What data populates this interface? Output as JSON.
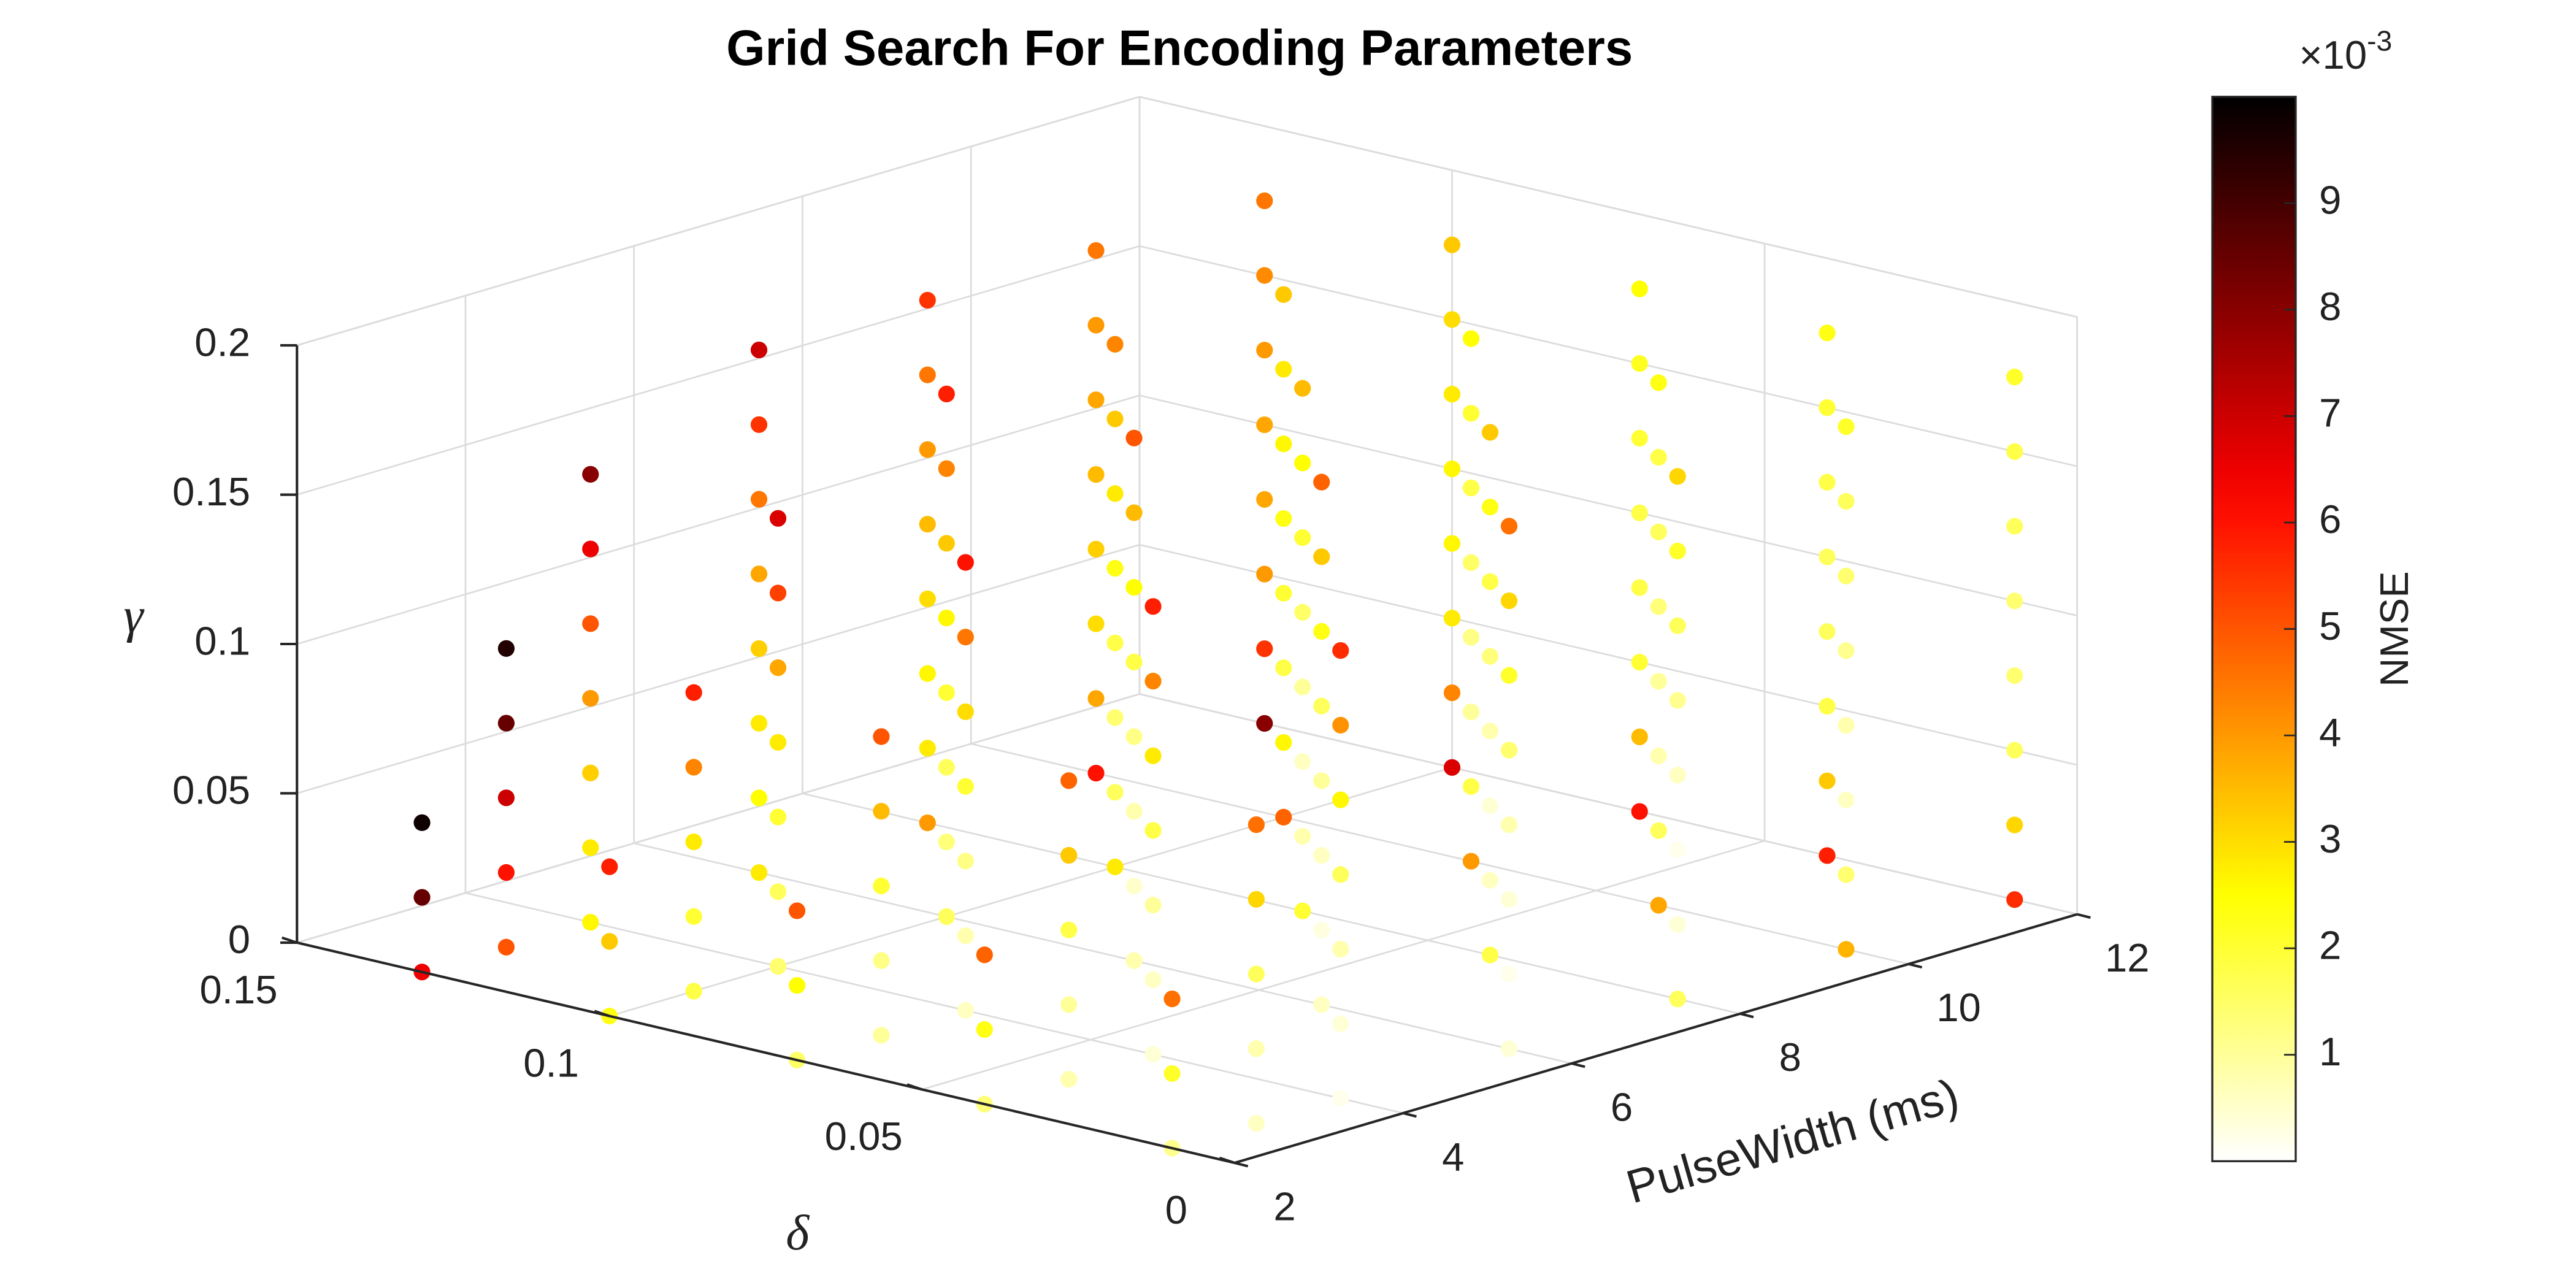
{
  "chart_data": {
    "type": "scatter3d",
    "title": "Grid Search For Encoding Parameters",
    "xlabel": "PulseWidth (ms)",
    "ylabel": "δ",
    "zlabel": "γ",
    "colorbar_label": "NMSE",
    "colorbar_scale": {
      "base": "×10",
      "exponent": "-3"
    },
    "xlim": [
      2,
      12
    ],
    "xticks": [
      2,
      4,
      6,
      8,
      10,
      12
    ],
    "ylim": [
      0,
      0.15
    ],
    "yticks": [
      0,
      0.05,
      0.1,
      0.15
    ],
    "zlim": [
      0,
      0.2
    ],
    "zticks": [
      0,
      0.05,
      0.1,
      0.15,
      0.2
    ],
    "clim": [
      0,
      10
    ],
    "cticks": [
      1,
      2,
      3,
      4,
      5,
      6,
      7,
      8,
      9
    ],
    "colormap": "hot",
    "colormap_reversed": true,
    "grid": true,
    "delta": [
      0.01,
      0.04,
      0.07,
      0.1,
      0.13
    ],
    "pulse_width": [
      2,
      3,
      4,
      6,
      8,
      10,
      12
    ],
    "gamma": [
      0,
      0.025,
      0.05,
      0.075,
      0.1,
      0.125,
      0.15,
      0.175
    ],
    "nmse": [
      [
        [
          1.1,
          2.1,
          4.6,
          null,
          null,
          null,
          null,
          null
        ],
        [
          0.6,
          0.8,
          1.6,
          3.1,
          4.6,
          null,
          null,
          null
        ],
        [
          0.2,
          0.4,
          0.8,
          1.6,
          2.6,
          4.1,
          5.6,
          null
        ],
        [
          0.4,
          0.2,
          0.4,
          0.8,
          1.4,
          2.1,
          3.1,
          4.6
        ],
        [
          1.6,
          0.4,
          0.2,
          0.6,
          1.1,
          1.6,
          2.1,
          3.1
        ],
        [
          3.6,
          1.4,
          0.6,
          0.8,
          1.1,
          1.4,
          1.6,
          2.1
        ],
        [
          5.6,
          3.1,
          1.6,
          1.4,
          1.4,
          1.6,
          1.8,
          2.1
        ]
      ],
      [
        [
          1.3,
          2.3,
          4.8,
          null,
          null,
          null,
          null,
          null
        ],
        [
          0.8,
          1.0,
          1.8,
          3.3,
          4.8,
          null,
          null,
          null
        ],
        [
          0.4,
          0.6,
          1.0,
          1.8,
          2.8,
          4.3,
          5.8,
          null
        ],
        [
          0.6,
          0.3,
          0.6,
          1.0,
          1.6,
          2.3,
          3.3,
          4.8
        ],
        [
          1.8,
          0.6,
          0.4,
          0.8,
          1.3,
          1.8,
          2.3,
          3.3
        ],
        [
          3.8,
          1.6,
          0.8,
          1.0,
          1.3,
          1.6,
          1.8,
          2.3
        ],
        [
          5.8,
          3.3,
          1.8,
          1.6,
          1.6,
          1.8,
          2.0,
          2.3
        ]
      ],
      [
        [
          1.5,
          2.5,
          5.0,
          null,
          null,
          null,
          null,
          null
        ],
        [
          1.0,
          1.2,
          2.0,
          3.5,
          5.0,
          null,
          null,
          null
        ],
        [
          0.6,
          0.8,
          1.2,
          2.0,
          3.0,
          4.5,
          6.0,
          null
        ],
        [
          0.8,
          0.5,
          0.8,
          1.2,
          1.8,
          2.5,
          3.5,
          5.0
        ],
        [
          2.0,
          0.8,
          0.6,
          1.0,
          1.5,
          2.0,
          2.5,
          3.5
        ],
        [
          4.0,
          1.8,
          1.0,
          1.2,
          1.5,
          1.8,
          2.0,
          2.5
        ],
        [
          6.0,
          3.5,
          2.0,
          1.8,
          1.8,
          2.0,
          2.2,
          2.5
        ]
      ],
      [
        [
          2.3,
          3.3,
          5.8,
          null,
          null,
          null,
          null,
          null
        ],
        [
          1.8,
          2.0,
          2.8,
          4.3,
          5.8,
          null,
          null,
          null
        ],
        [
          1.4,
          1.6,
          2.0,
          2.8,
          3.8,
          5.3,
          6.8,
          null
        ],
        [
          1.6,
          1.3,
          1.6,
          2.0,
          2.6,
          3.3,
          4.3,
          5.8
        ],
        [
          2.8,
          1.6,
          1.4,
          1.8,
          2.3,
          2.8,
          3.3,
          4.3
        ],
        [
          4.8,
          2.6,
          1.8,
          2.0,
          2.3,
          2.6,
          2.8,
          3.3
        ],
        [
          6.8,
          4.3,
          2.8,
          2.6,
          2.6,
          2.8,
          3.0,
          3.3
        ]
      ],
      [
        [
          6.5,
          8.5,
          9.8,
          null,
          null,
          null,
          null,
          null
        ],
        [
          5.0,
          6.0,
          7.0,
          8.5,
          9.5,
          null,
          null,
          null
        ],
        [
          2.6,
          2.8,
          3.2,
          4.0,
          5.0,
          6.5,
          8.0,
          null
        ],
        [
          2.8,
          2.5,
          2.8,
          3.2,
          3.8,
          4.5,
          5.5,
          7.0
        ],
        [
          4.0,
          2.8,
          2.6,
          3.0,
          3.5,
          4.0,
          4.5,
          5.5
        ],
        [
          6.0,
          3.8,
          3.0,
          3.2,
          3.5,
          3.8,
          4.0,
          4.5
        ],
        [
          8.0,
          5.5,
          4.0,
          3.8,
          3.8,
          4.0,
          4.2,
          4.5
        ]
      ]
    ]
  }
}
